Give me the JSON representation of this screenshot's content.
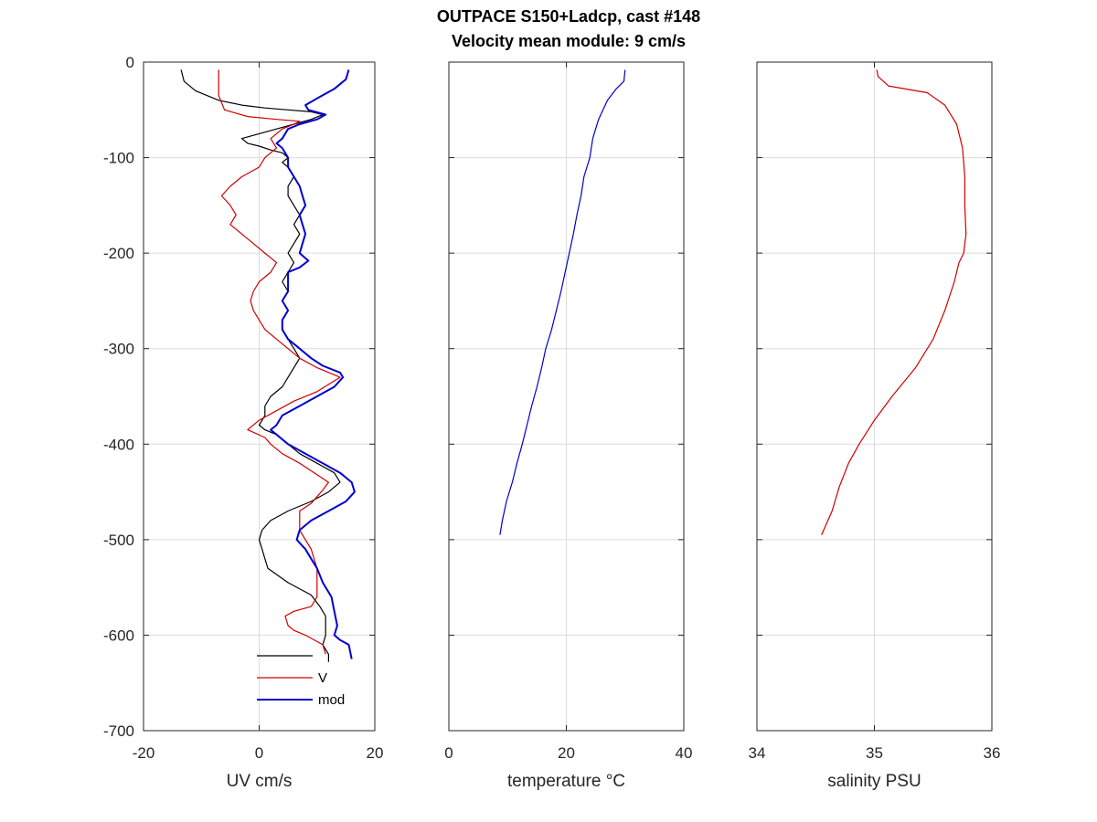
{
  "chart_data": [
    {
      "type": "line",
      "title": "OUTPACE S150+Ladcp, cast #148",
      "subtitle": "Velocity mean module:  9 cm/s",
      "xlabel": "UV cm/s",
      "ylabel": "",
      "xlim": [
        -20,
        20
      ],
      "ylim": [
        -700,
        0
      ],
      "xticks": [
        "-20",
        "0",
        "20"
      ],
      "yticks": [
        "0",
        "-100",
        "-200",
        "-300",
        "-400",
        "-500",
        "-600",
        "-700"
      ],
      "grid": true,
      "legend_position": "bottom-right",
      "series": [
        {
          "name": "",
          "color": "#000000",
          "points": [
            [
              -13.5,
              -8
            ],
            [
              -13,
              -20
            ],
            [
              -11,
              -30
            ],
            [
              -7,
              -40
            ],
            [
              -3,
              -45
            ],
            [
              1,
              -48
            ],
            [
              5,
              -50
            ],
            [
              9,
              -52
            ],
            [
              11,
              -55
            ],
            [
              9,
              -60
            ],
            [
              6,
              -65
            ],
            [
              3,
              -70
            ],
            [
              0,
              -75
            ],
            [
              -3,
              -80
            ],
            [
              -2,
              -85
            ],
            [
              0,
              -88
            ],
            [
              2,
              -92
            ],
            [
              4,
              -95
            ],
            [
              5,
              -100
            ],
            [
              4,
              -105
            ],
            [
              5,
              -110
            ],
            [
              6,
              -120
            ],
            [
              5,
              -130
            ],
            [
              5,
              -140
            ],
            [
              6,
              -150
            ],
            [
              7,
              -160
            ],
            [
              6,
              -170
            ],
            [
              7,
              -180
            ],
            [
              6,
              -190
            ],
            [
              5,
              -200
            ],
            [
              6,
              -210
            ],
            [
              5,
              -220
            ],
            [
              4,
              -230
            ],
            [
              5,
              -240
            ],
            [
              4,
              -250
            ],
            [
              5,
              -260
            ],
            [
              4,
              -270
            ],
            [
              4,
              -280
            ],
            [
              5,
              -290
            ],
            [
              6,
              -300
            ],
            [
              7,
              -310
            ],
            [
              6,
              -320
            ],
            [
              5,
              -330
            ],
            [
              4,
              -340
            ],
            [
              2,
              -350
            ],
            [
              1,
              -360
            ],
            [
              1,
              -370
            ],
            [
              0,
              -380
            ],
            [
              1,
              -385
            ],
            [
              3,
              -390
            ],
            [
              5,
              -400
            ],
            [
              7,
              -410
            ],
            [
              10,
              -420
            ],
            [
              13,
              -430
            ],
            [
              14,
              -440
            ],
            [
              12,
              -450
            ],
            [
              9,
              -460
            ],
            [
              5,
              -470
            ],
            [
              2,
              -480
            ],
            [
              0.5,
              -490
            ],
            [
              0,
              -500
            ],
            [
              0.5,
              -510
            ],
            [
              1,
              -520
            ],
            [
              1.5,
              -530
            ],
            [
              5,
              -545
            ],
            [
              9,
              -558
            ],
            [
              10.5,
              -570
            ],
            [
              11.5,
              -580
            ],
            [
              11.5,
              -590
            ],
            [
              11.5,
              -600
            ],
            [
              11,
              -610
            ],
            [
              12,
              -620
            ],
            [
              12,
              -628
            ]
          ]
        },
        {
          "name": "V",
          "color": "#d00000",
          "points": [
            [
              -7,
              -8
            ],
            [
              -7,
              -20
            ],
            [
              -7,
              -35
            ],
            [
              -6,
              -50
            ],
            [
              -2,
              -57
            ],
            [
              3,
              -60
            ],
            [
              7,
              -62
            ],
            [
              6,
              -65
            ],
            [
              4,
              -70
            ],
            [
              2,
              -80
            ],
            [
              3,
              -90
            ],
            [
              1,
              -100
            ],
            [
              0,
              -110
            ],
            [
              -3,
              -120
            ],
            [
              -5,
              -130
            ],
            [
              -6.5,
              -140
            ],
            [
              -5,
              -150
            ],
            [
              -4,
              -160
            ],
            [
              -5,
              -170
            ],
            [
              -3,
              -180
            ],
            [
              -1,
              -190
            ],
            [
              1,
              -200
            ],
            [
              3,
              -210
            ],
            [
              2,
              -220
            ],
            [
              0,
              -230
            ],
            [
              -1,
              -240
            ],
            [
              -1.5,
              -250
            ],
            [
              -1,
              -260
            ],
            [
              0,
              -270
            ],
            [
              1,
              -280
            ],
            [
              3,
              -290
            ],
            [
              5,
              -300
            ],
            [
              7,
              -310
            ],
            [
              10,
              -320
            ],
            [
              14,
              -330
            ],
            [
              10,
              -345
            ],
            [
              6,
              -355
            ],
            [
              3,
              -365
            ],
            [
              0,
              -375
            ],
            [
              -2,
              -385
            ],
            [
              1,
              -393
            ],
            [
              2,
              -400
            ],
            [
              4,
              -410
            ],
            [
              7,
              -420
            ],
            [
              10,
              -432
            ],
            [
              12,
              -440
            ],
            [
              11,
              -448
            ],
            [
              10,
              -455
            ],
            [
              9,
              -462
            ],
            [
              7,
              -470
            ],
            [
              7,
              -480
            ],
            [
              7,
              -490
            ],
            [
              8,
              -500
            ],
            [
              9,
              -510
            ],
            [
              9.5,
              -520
            ],
            [
              10,
              -530
            ],
            [
              10,
              -545
            ],
            [
              10,
              -560
            ],
            [
              9,
              -570
            ],
            [
              6,
              -575
            ],
            [
              4.5,
              -580
            ],
            [
              5,
              -590
            ],
            [
              6,
              -595
            ],
            [
              8,
              -600
            ],
            [
              11,
              -610
            ],
            [
              11.5,
              -620
            ]
          ]
        },
        {
          "name": "mod",
          "color": "#0000d0",
          "points": [
            [
              15.5,
              -8
            ],
            [
              15,
              -18
            ],
            [
              13,
              -28
            ],
            [
              10,
              -38
            ],
            [
              8,
              -45
            ],
            [
              8.5,
              -50
            ],
            [
              11.5,
              -55
            ],
            [
              10,
              -60
            ],
            [
              7,
              -65
            ],
            [
              5,
              -70
            ],
            [
              4,
              -80
            ],
            [
              3,
              -85
            ],
            [
              4,
              -90
            ],
            [
              5,
              -100
            ],
            [
              5,
              -110
            ],
            [
              6,
              -120
            ],
            [
              7,
              -130
            ],
            [
              7.5,
              -140
            ],
            [
              8,
              -150
            ],
            [
              7,
              -160
            ],
            [
              7.5,
              -170
            ],
            [
              8,
              -180
            ],
            [
              7.5,
              -190
            ],
            [
              7,
              -200
            ],
            [
              8.5,
              -208
            ],
            [
              7,
              -215
            ],
            [
              5,
              -220
            ],
            [
              5,
              -230
            ],
            [
              5,
              -240
            ],
            [
              4,
              -250
            ],
            [
              5,
              -260
            ],
            [
              4,
              -270
            ],
            [
              4,
              -280
            ],
            [
              5,
              -290
            ],
            [
              7,
              -300
            ],
            [
              9,
              -310
            ],
            [
              11,
              -318
            ],
            [
              14,
              -325
            ],
            [
              14.5,
              -330
            ],
            [
              13,
              -340
            ],
            [
              10,
              -350
            ],
            [
              7,
              -360
            ],
            [
              4,
              -370
            ],
            [
              3,
              -380
            ],
            [
              2,
              -385
            ],
            [
              3,
              -390
            ],
            [
              5,
              -400
            ],
            [
              8,
              -410
            ],
            [
              11,
              -420
            ],
            [
              14,
              -430
            ],
            [
              16,
              -440
            ],
            [
              16.5,
              -450
            ],
            [
              15,
              -460
            ],
            [
              12,
              -470
            ],
            [
              9,
              -480
            ],
            [
              7,
              -490
            ],
            [
              6.5,
              -500
            ],
            [
              8,
              -510
            ],
            [
              9,
              -520
            ],
            [
              10,
              -530
            ],
            [
              11,
              -545
            ],
            [
              12.5,
              -560
            ],
            [
              13,
              -575
            ],
            [
              13.5,
              -590
            ],
            [
              13,
              -600
            ],
            [
              14,
              -605
            ],
            [
              15.5,
              -610
            ],
            [
              16,
              -625
            ]
          ]
        }
      ],
      "legend": [
        "",
        "V",
        "mod"
      ]
    },
    {
      "type": "line",
      "title": "",
      "xlabel": "temperature °C",
      "ylabel": "",
      "xlim": [
        0,
        40
      ],
      "ylim": [
        -700,
        0
      ],
      "xticks": [
        "0",
        "20",
        "40"
      ],
      "grid": true,
      "series": [
        {
          "name": "",
          "color": "#0000d0",
          "points": [
            [
              30,
              -8
            ],
            [
              29.8,
              -20
            ],
            [
              28.5,
              -28
            ],
            [
              27,
              -40
            ],
            [
              25.5,
              -60
            ],
            [
              24.5,
              -80
            ],
            [
              24,
              -100
            ],
            [
              23,
              -120
            ],
            [
              22.5,
              -140
            ],
            [
              21.8,
              -160
            ],
            [
              21.2,
              -180
            ],
            [
              20.5,
              -200
            ],
            [
              19.8,
              -220
            ],
            [
              19.1,
              -240
            ],
            [
              18.3,
              -260
            ],
            [
              17.5,
              -280
            ],
            [
              16.5,
              -300
            ],
            [
              15.8,
              -320
            ],
            [
              15,
              -340
            ],
            [
              14.1,
              -360
            ],
            [
              13.3,
              -380
            ],
            [
              12.5,
              -400
            ],
            [
              11.6,
              -420
            ],
            [
              10.8,
              -440
            ],
            [
              9.8,
              -460
            ],
            [
              9.1,
              -480
            ],
            [
              8.7,
              -495
            ]
          ]
        }
      ]
    },
    {
      "type": "line",
      "title": "",
      "xlabel": "salinity PSU",
      "ylabel": "",
      "xlim": [
        34,
        36
      ],
      "ylim": [
        -700,
        0
      ],
      "xticks": [
        "34",
        "35",
        "36"
      ],
      "grid": true,
      "series": [
        {
          "name": "",
          "color": "#d00000",
          "points": [
            [
              35.02,
              -8
            ],
            [
              35.03,
              -15
            ],
            [
              35.12,
              -25
            ],
            [
              35.45,
              -32
            ],
            [
              35.6,
              -45
            ],
            [
              35.7,
              -65
            ],
            [
              35.75,
              -90
            ],
            [
              35.77,
              -120
            ],
            [
              35.77,
              -150
            ],
            [
              35.78,
              -180
            ],
            [
              35.76,
              -200
            ],
            [
              35.72,
              -210
            ],
            [
              35.68,
              -230
            ],
            [
              35.6,
              -260
            ],
            [
              35.5,
              -290
            ],
            [
              35.35,
              -320
            ],
            [
              35.15,
              -350
            ],
            [
              35.0,
              -375
            ],
            [
              34.87,
              -400
            ],
            [
              34.78,
              -420
            ],
            [
              34.7,
              -445
            ],
            [
              34.64,
              -470
            ],
            [
              34.55,
              -495
            ]
          ]
        }
      ]
    }
  ]
}
